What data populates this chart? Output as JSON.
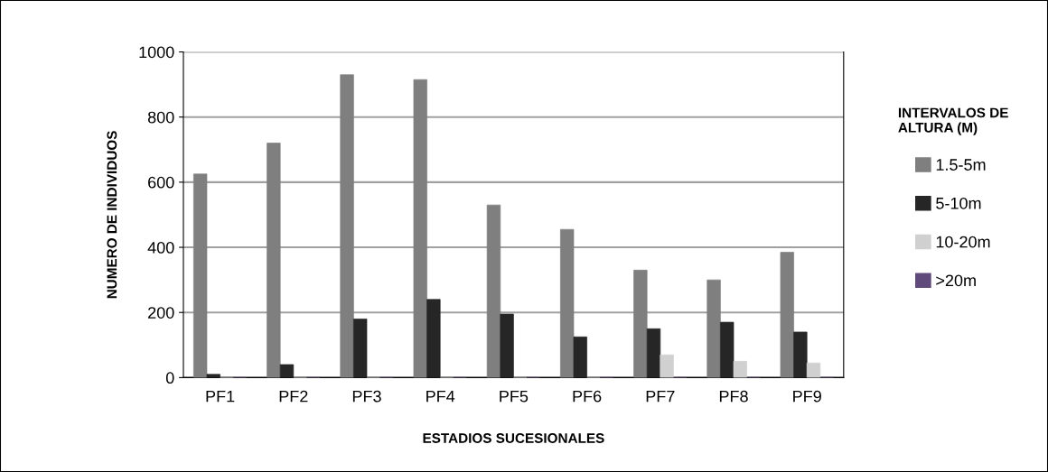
{
  "chart_data": {
    "type": "bar",
    "xlabel": "ESTADIOS SUCESIONALES",
    "ylabel": "NUMERO DE INDIVIDUOS",
    "legend_title": "INTERVALOS DE\nALTURA (M)",
    "categories": [
      "PF1",
      "PF2",
      "PF3",
      "PF4",
      "PF5",
      "PF6",
      "PF7",
      "PF8",
      "PF9"
    ],
    "series": [
      {
        "name": "1.5-5m",
        "color": "#7f7f7f",
        "values": [
          625,
          720,
          930,
          915,
          530,
          455,
          330,
          300,
          385
        ]
      },
      {
        "name": "5-10m",
        "color": "#262626",
        "values": [
          10,
          40,
          180,
          240,
          195,
          125,
          150,
          170,
          140
        ]
      },
      {
        "name": "10-20m",
        "color": "#d0d0d0",
        "values": [
          0,
          0,
          0,
          0,
          0,
          0,
          70,
          50,
          45
        ]
      },
      {
        "name": ">20m",
        "color": "#604a7b",
        "values": [
          0,
          0,
          0,
          0,
          0,
          0,
          0,
          0,
          0
        ]
      }
    ],
    "ylim": [
      0,
      1000
    ],
    "yticks": [
      0,
      200,
      400,
      600,
      800,
      1000
    ],
    "grid": "y",
    "legend": "right"
  }
}
